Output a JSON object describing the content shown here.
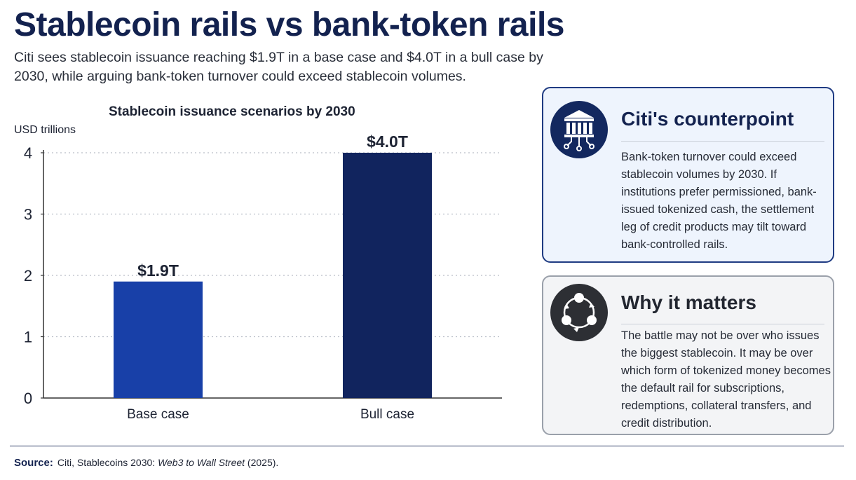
{
  "header": {
    "title": "Stablecoin rails vs bank-token rails",
    "subtitle": "Citi sees stablecoin issuance reaching $1.9T in a base case and $4.0T in a bull case by 2030, while arguing bank-token turnover could exceed stablecoin volumes."
  },
  "chart_data": {
    "type": "bar",
    "title": "Stablecoin issuance scenarios by 2030",
    "ylabel": "USD trillions",
    "xlabel": "",
    "categories": [
      "Base case",
      "Bull case"
    ],
    "values": [
      1.9,
      4.0
    ],
    "data_labels": [
      "$1.9T",
      "$4.0T"
    ],
    "colors": [
      "#1840a8",
      "#11245e"
    ],
    "ylim": [
      0,
      4
    ],
    "yticks": [
      "0",
      "1",
      "2",
      "3",
      "4"
    ],
    "grid": true,
    "legend": "none"
  },
  "cards": [
    {
      "heading": "Citi's counterpoint",
      "icon": "bank-building-icon",
      "body": "Bank-token turnover could exceed stablecoin volumes by 2030. If institutions prefer permissioned, bank-issued tokenized cash, the settlement leg of credit products may tilt toward bank-controlled rails."
    },
    {
      "heading": "Why it matters",
      "icon": "cycle-network-icon",
      "body": "The battle may not be over who issues the biggest stablecoin. It may be over which form of tokenized money becomes the default rail for subscriptions, redemptions, collateral transfers, and credit distribution."
    }
  ],
  "footer": {
    "source_label": "Source:",
    "source_org": "Citi, Stablecoins 2030: ",
    "source_title": "Web3 to Wall Street",
    "source_year": " (2025)."
  }
}
